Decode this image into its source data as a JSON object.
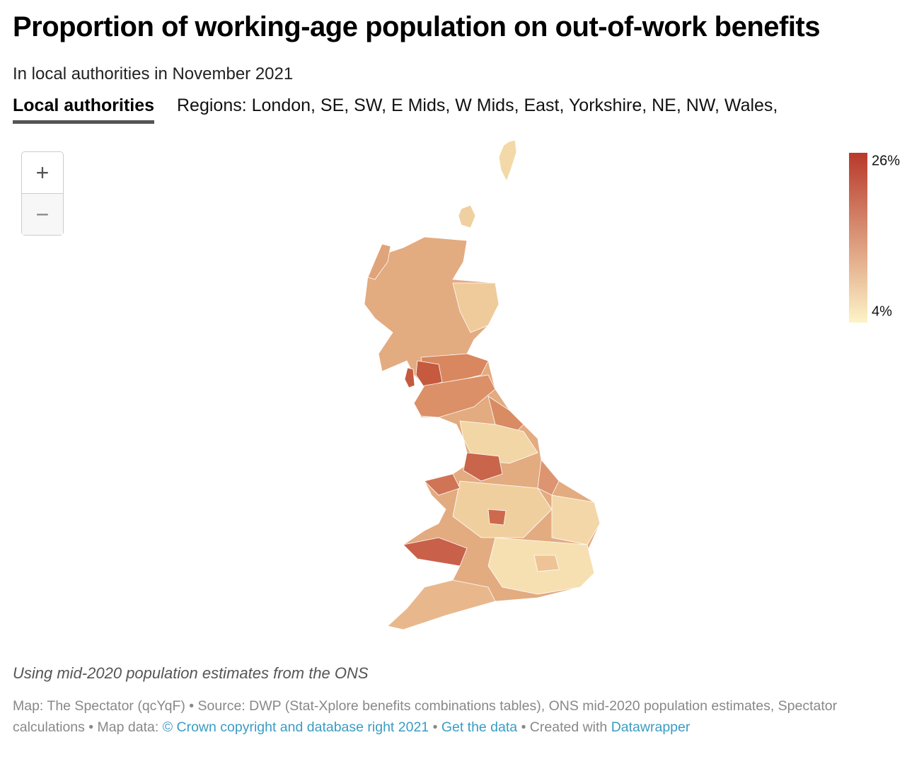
{
  "header": {
    "title": "Proportion of working-age population on out-of-work benefits",
    "subtitle": "In local authorities in November 2021"
  },
  "tabs": {
    "active": "Local authorities",
    "regions": "Regions: London, SE, SW, E Mids, W Mids, East, Yorkshire, NE, NW, Wales,"
  },
  "zoom": {
    "in": "+",
    "out": "−"
  },
  "legend": {
    "range": [
      4,
      26
    ],
    "ticks": [
      {
        "value": 26,
        "label": "26%"
      },
      {
        "value": 4,
        "label": "4%"
      }
    ],
    "colors": [
      "#fdf3c8",
      "#b8392a"
    ]
  },
  "note": "Using mid-2020 population estimates from the ONS",
  "footer": {
    "segments": [
      {
        "text": "Map: The Spectator (qcYqF) • Source: DWP (Stat-Xplore benefits combinations tables), ONS mid-2020 population estimates, Spectator calculations • Map data:"
      },
      {
        "text": "© Crown copyright and database right 2021",
        "link": true
      },
      {
        "text": "•"
      },
      {
        "text": "Get the data",
        "link": true
      },
      {
        "text": "• Created with"
      },
      {
        "text": "Datawrapper",
        "link": true
      }
    ]
  }
}
